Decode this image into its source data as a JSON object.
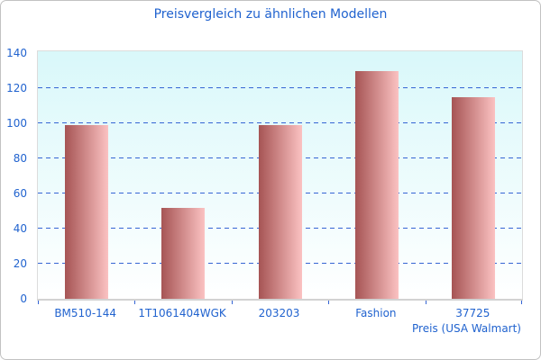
{
  "chart_data": {
    "type": "bar",
    "title": "Preisvergleich zu ähnlichen Modellen",
    "xlabel": "Preis (USA Walmart)",
    "ylabel": "",
    "categories": [
      "BM510-144",
      "1T1061404WGK",
      "203203",
      "Fashion",
      "37725"
    ],
    "values": [
      99,
      52,
      99,
      130,
      115
    ],
    "ylim": [
      0,
      140
    ],
    "ytick_step": 20,
    "grid": "horizontal-dashed",
    "legend": "none",
    "colors": {
      "text_blue": "#2163cf",
      "grid_blue": "#3565d4",
      "tick_blue": "#3565d4",
      "bar_gradient_left": "#a65454",
      "bar_gradient_right": "#fbc2c2",
      "plot_bg_top": "#d9f8fa",
      "plot_bg_bottom": "#ffffff",
      "axis_gray": "#d2d2d2",
      "frame_border": "#c2c2c2"
    }
  }
}
